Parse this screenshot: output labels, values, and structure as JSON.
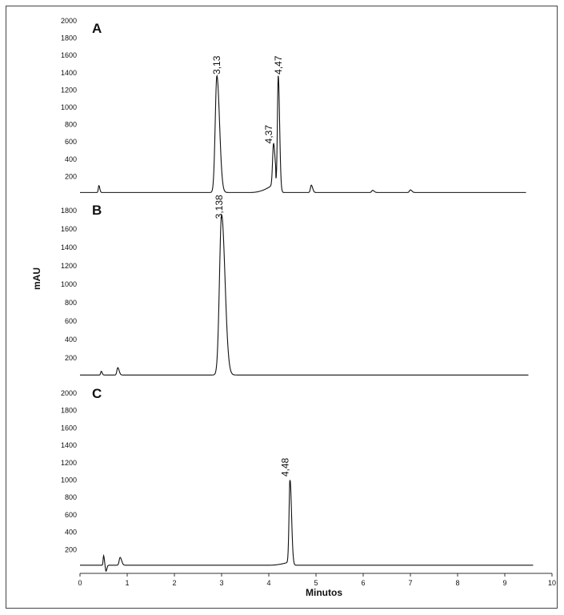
{
  "chart_data": [
    {
      "type": "line",
      "panel_label": "A",
      "ylim": [
        0,
        2000
      ],
      "yticks": [
        "200",
        "400",
        "600",
        "800",
        "1000",
        "1200",
        "1400",
        "1600",
        "1800",
        "2000"
      ],
      "baseline": 15,
      "x_end": 9.45,
      "peaks": [
        {
          "x": 0.4,
          "height": 80,
          "width": 0.012
        },
        {
          "x": 2.9,
          "height": 1350,
          "width": 0.035
        },
        {
          "x": 4.1,
          "height": 470,
          "width": 0.02
        },
        {
          "x": 4.2,
          "height": 1350,
          "width": 0.018
        },
        {
          "x": 4.9,
          "height": 85,
          "width": 0.018
        },
        {
          "x": 6.2,
          "height": 25,
          "width": 0.02
        },
        {
          "x": 7.0,
          "height": 30,
          "width": 0.02
        }
      ],
      "peak_labels": [
        {
          "text": "3,13",
          "x": 2.9,
          "y": 1380
        },
        {
          "text": "4,37",
          "x": 4.0,
          "y": 580
        },
        {
          "text": "4,47",
          "x": 4.2,
          "y": 1380
        }
      ]
    },
    {
      "type": "line",
      "panel_label": "B",
      "ylim": [
        0,
        1900
      ],
      "yticks": [
        "200",
        "400",
        "600",
        "800",
        "1000",
        "1200",
        "1400",
        "1600",
        "1800"
      ],
      "baseline": 15,
      "x_end": 9.5,
      "peaks": [
        {
          "x": 0.45,
          "height": 40,
          "width": 0.012
        },
        {
          "x": 0.8,
          "height": 80,
          "width": 0.018
        },
        {
          "x": 3.0,
          "height": 1740,
          "width": 0.045
        }
      ],
      "peak_labels": [
        {
          "text": "3,138",
          "x": 2.95,
          "y": 1710
        }
      ]
    },
    {
      "type": "line",
      "panel_label": "C",
      "ylim": [
        0,
        2000
      ],
      "yticks": [
        "200",
        "400",
        "600",
        "800",
        "1000",
        "1200",
        "1400",
        "1600",
        "1800",
        "2000"
      ],
      "baseline": 20,
      "x_end": 9.6,
      "peaks": [
        {
          "x": 0.5,
          "height": 110,
          "width": 0.01
        },
        {
          "x": 0.55,
          "height": -70,
          "width": 0.012
        },
        {
          "x": 0.85,
          "height": 90,
          "width": 0.02
        },
        {
          "x": 4.45,
          "height": 980,
          "width": 0.02
        }
      ],
      "peak_labels": [
        {
          "text": "4,48",
          "x": 4.35,
          "y": 1040
        }
      ]
    }
  ],
  "x_axis": {
    "xlim": [
      0,
      10
    ],
    "ticks": [
      "0",
      "1",
      "2",
      "3",
      "4",
      "5",
      "6",
      "7",
      "8",
      "9",
      "10"
    ],
    "label": "Minutos"
  },
  "y_axis_label": "mAU",
  "colors": {
    "line": "#111111",
    "axis": "#333333"
  }
}
